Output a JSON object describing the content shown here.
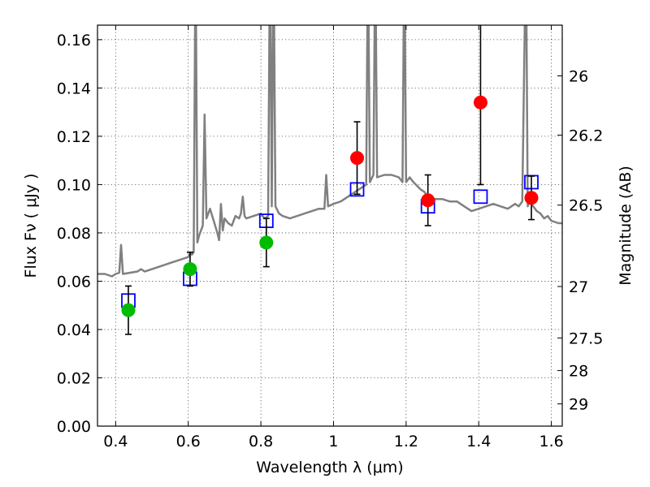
{
  "chart_data": {
    "type": "scatter",
    "xlabel": "Wavelength  λ (μm)",
    "ylabel": "Flux  Fν  ( μJy )",
    "y2label": "Magnitude (AB)",
    "xlim": [
      0.35,
      1.63
    ],
    "ylim": [
      0.0,
      0.166
    ],
    "xticks": [
      0.4,
      0.6,
      0.8,
      1.0,
      1.2,
      1.4,
      1.6
    ],
    "xtick_labels": [
      "0.4",
      "0.6",
      "0.8",
      "1",
      "1.2",
      "1.4",
      "1.6"
    ],
    "yticks": [
      0.0,
      0.02,
      0.04,
      0.06,
      0.08,
      0.1,
      0.12,
      0.14,
      0.16
    ],
    "ytick_labels": [
      "0.00",
      "0.02",
      "0.04",
      "0.06",
      "0.08",
      "0.10",
      "0.12",
      "0.14",
      "0.16"
    ],
    "y2ticks": [
      {
        "label": "26",
        "flux": 0.145
      },
      {
        "label": "26.2",
        "flux": 0.1205
      },
      {
        "label": "26.5",
        "flux": 0.0915
      },
      {
        "label": "27",
        "flux": 0.0578
      },
      {
        "label": "27.5",
        "flux": 0.0365
      },
      {
        "label": "28",
        "flux": 0.023
      },
      {
        "label": "29",
        "flux": 0.0092
      }
    ],
    "grid": true,
    "series": [
      {
        "kind": "spectrum",
        "color": "#808080",
        "points": [
          [
            0.35,
            0.063
          ],
          [
            0.37,
            0.063
          ],
          [
            0.39,
            0.062
          ],
          [
            0.4,
            0.063
          ],
          [
            0.41,
            0.0635
          ],
          [
            0.415,
            0.075
          ],
          [
            0.42,
            0.063
          ],
          [
            0.44,
            0.0635
          ],
          [
            0.46,
            0.064
          ],
          [
            0.47,
            0.065
          ],
          [
            0.48,
            0.064
          ],
          [
            0.5,
            0.065
          ],
          [
            0.52,
            0.066
          ],
          [
            0.54,
            0.067
          ],
          [
            0.56,
            0.068
          ],
          [
            0.58,
            0.069
          ],
          [
            0.6,
            0.07
          ],
          [
            0.605,
            0.0715
          ],
          [
            0.61,
            0.071
          ],
          [
            0.615,
            0.072
          ],
          [
            0.62,
            0.2
          ],
          [
            0.625,
            0.076
          ],
          [
            0.63,
            0.079
          ],
          [
            0.64,
            0.083
          ],
          [
            0.645,
            0.129
          ],
          [
            0.65,
            0.086
          ],
          [
            0.66,
            0.09
          ],
          [
            0.67,
            0.085
          ],
          [
            0.68,
            0.08
          ],
          [
            0.685,
            0.077
          ],
          [
            0.69,
            0.092
          ],
          [
            0.695,
            0.081
          ],
          [
            0.7,
            0.086
          ],
          [
            0.71,
            0.084
          ],
          [
            0.72,
            0.083
          ],
          [
            0.73,
            0.087
          ],
          [
            0.74,
            0.086
          ],
          [
            0.745,
            0.088
          ],
          [
            0.75,
            0.095
          ],
          [
            0.755,
            0.087
          ],
          [
            0.76,
            0.086
          ],
          [
            0.78,
            0.087
          ],
          [
            0.8,
            0.088
          ],
          [
            0.81,
            0.086
          ],
          [
            0.82,
            0.087
          ],
          [
            0.825,
            0.2
          ],
          [
            0.83,
            0.091
          ],
          [
            0.835,
            0.2
          ],
          [
            0.84,
            0.091
          ],
          [
            0.85,
            0.088
          ],
          [
            0.86,
            0.087
          ],
          [
            0.88,
            0.086
          ],
          [
            0.9,
            0.087
          ],
          [
            0.92,
            0.088
          ],
          [
            0.94,
            0.089
          ],
          [
            0.96,
            0.09
          ],
          [
            0.975,
            0.09
          ],
          [
            0.98,
            0.104
          ],
          [
            0.985,
            0.091
          ],
          [
            1.0,
            0.092
          ],
          [
            1.02,
            0.093
          ],
          [
            1.04,
            0.095
          ],
          [
            1.06,
            0.097
          ],
          [
            1.08,
            0.099
          ],
          [
            1.09,
            0.1
          ],
          [
            1.095,
            0.2
          ],
          [
            1.1,
            0.101
          ],
          [
            1.11,
            0.104
          ],
          [
            1.115,
            0.2
          ],
          [
            1.12,
            0.103
          ],
          [
            1.14,
            0.104
          ],
          [
            1.16,
            0.104
          ],
          [
            1.18,
            0.103
          ],
          [
            1.19,
            0.101
          ],
          [
            1.195,
            0.2
          ],
          [
            1.2,
            0.101
          ],
          [
            1.21,
            0.103
          ],
          [
            1.22,
            0.101
          ],
          [
            1.24,
            0.098
          ],
          [
            1.25,
            0.097
          ],
          [
            1.26,
            0.095
          ],
          [
            1.28,
            0.094
          ],
          [
            1.3,
            0.094
          ],
          [
            1.32,
            0.093
          ],
          [
            1.34,
            0.093
          ],
          [
            1.36,
            0.091
          ],
          [
            1.38,
            0.089
          ],
          [
            1.4,
            0.09
          ],
          [
            1.42,
            0.091
          ],
          [
            1.44,
            0.092
          ],
          [
            1.46,
            0.091
          ],
          [
            1.48,
            0.09
          ],
          [
            1.5,
            0.092
          ],
          [
            1.51,
            0.091
          ],
          [
            1.52,
            0.093
          ],
          [
            1.53,
            0.2
          ],
          [
            1.535,
            0.091
          ],
          [
            1.54,
            0.093
          ],
          [
            1.55,
            0.091
          ],
          [
            1.56,
            0.089
          ],
          [
            1.57,
            0.088
          ],
          [
            1.58,
            0.086
          ],
          [
            1.59,
            0.087
          ],
          [
            1.6,
            0.085
          ],
          [
            1.62,
            0.084
          ],
          [
            1.63,
            0.084
          ]
        ]
      },
      {
        "kind": "model-boxes",
        "color": "#0000ff",
        "points": [
          [
            0.435,
            0.052
          ],
          [
            0.605,
            0.061
          ],
          [
            0.815,
            0.085
          ],
          [
            1.065,
            0.098
          ],
          [
            1.26,
            0.091
          ],
          [
            1.405,
            0.095
          ],
          [
            1.545,
            0.101
          ]
        ]
      },
      {
        "kind": "detections",
        "color": "#00bb00",
        "points": [
          {
            "x": 0.435,
            "y": 0.048,
            "err": 0.01
          },
          {
            "x": 0.605,
            "y": 0.065,
            "err": 0.007
          },
          {
            "x": 0.815,
            "y": 0.076,
            "err": 0.01
          }
        ]
      },
      {
        "kind": "detections",
        "color": "#ff0000",
        "points": [
          {
            "x": 1.065,
            "y": 0.111,
            "err": 0.015
          },
          {
            "x": 1.26,
            "y": 0.0935,
            "err": 0.0105
          },
          {
            "x": 1.405,
            "y": 0.134,
            "err": 0.034
          },
          {
            "x": 1.545,
            "y": 0.0945,
            "err": 0.009
          }
        ]
      }
    ]
  }
}
